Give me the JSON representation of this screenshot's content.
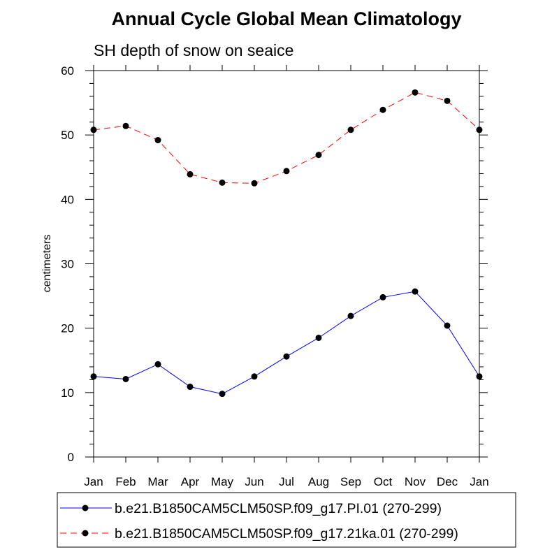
{
  "chart_data": {
    "type": "line",
    "title": "Annual Cycle Global Mean Climatology",
    "subtitle": "SH depth of snow on seaice",
    "xlabel": "",
    "ylabel": "centimeters",
    "categories": [
      "Jan",
      "Feb",
      "Mar",
      "Apr",
      "May",
      "Jun",
      "Jul",
      "Aug",
      "Sep",
      "Oct",
      "Nov",
      "Dec",
      "Jan"
    ],
    "ylim": [
      0,
      60
    ],
    "yticks": [
      0,
      10,
      20,
      30,
      40,
      50,
      60
    ],
    "grid": false,
    "legend_position": "bottom",
    "series": [
      {
        "name": "b.e21.B1850CAM5CLM50SP.f09_g17.PI.01 (270-299)",
        "color": "#0000ff",
        "dash": "solid",
        "values": [
          12.5,
          12.1,
          14.4,
          10.9,
          9.8,
          12.5,
          15.6,
          18.5,
          21.9,
          24.8,
          25.7,
          20.4,
          12.5
        ]
      },
      {
        "name": "b.e21.B1850CAM5CLM50SP.f09_g17.21ka.01 (270-299)",
        "color": "#ff0000",
        "dash": "dashed",
        "values": [
          50.8,
          51.4,
          49.2,
          43.9,
          42.6,
          42.5,
          44.4,
          46.9,
          50.8,
          53.9,
          56.6,
          55.3,
          50.8
        ]
      }
    ]
  }
}
